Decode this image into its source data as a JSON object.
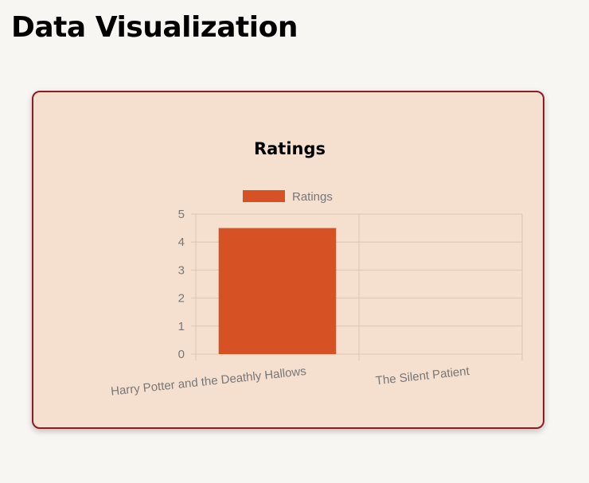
{
  "page": {
    "title": "Data Visualization"
  },
  "chart_data": {
    "type": "bar",
    "title": "Ratings",
    "categories": [
      "Harry Potter and the Deathly Hallows",
      "The Silent Patient"
    ],
    "series": [
      {
        "name": "Ratings",
        "values": [
          4.5,
          0
        ]
      }
    ],
    "ylim": [
      0,
      5
    ],
    "yticks": [
      "0",
      "1",
      "2",
      "3",
      "4",
      "5"
    ],
    "legend_position": "top",
    "grid": true,
    "colors": {
      "bar": "#d65124",
      "grid": "#dcc6b4",
      "axis_text": "#777777",
      "title": "#000000"
    }
  }
}
